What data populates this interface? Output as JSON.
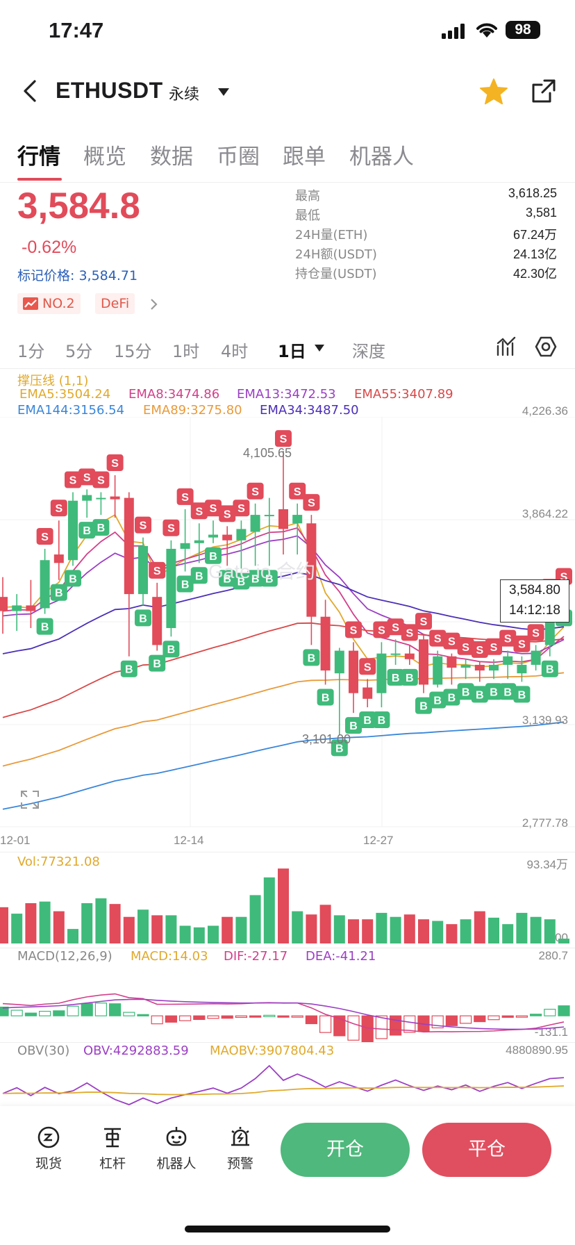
{
  "status_bar": {
    "time": "17:47",
    "battery": "98"
  },
  "header": {
    "pair": "ETHUSDT",
    "contract_type": "永续"
  },
  "tabs": [
    "行情",
    "概览",
    "数据",
    "币圈",
    "跟单",
    "机器人"
  ],
  "price": {
    "last": "3,584.8",
    "change": "-0.62%",
    "mark_label": "标记价格: 3,584.71",
    "tags": [
      "NO.2",
      "DeFi"
    ]
  },
  "stats": [
    {
      "label": "最高",
      "value": "3,618.25"
    },
    {
      "label": "最低",
      "value": "3,581"
    },
    {
      "label": "24H量(ETH)",
      "value": "67.24万"
    },
    {
      "label": "24H额(USDT)",
      "value": "24.13亿"
    },
    {
      "label": "持仓量(USDT)",
      "value": "42.30亿"
    }
  ],
  "timeframes": [
    "1分",
    "5分",
    "15分",
    "1时",
    "4时",
    "1日",
    "深度"
  ],
  "indicators": {
    "support_line": "撑压线 (1,1)",
    "ema_row1": [
      "EMA5:3504.24",
      "EMA8:3474.86",
      "EMA13:3472.53",
      "EMA55:3407.89"
    ],
    "ema_row2": [
      "EMA144:3156.54",
      "EMA89:3275.80",
      "EMA34:3487.50"
    ],
    "ema_colors": {
      "ema5": "#e0a92b",
      "ema8": "#d23f8a",
      "ema13": "#9b3fc4",
      "ema55": "#d94848",
      "ema144": "#3a86d9",
      "ema89": "#e89a3a",
      "ema34": "#4b2fb8"
    }
  },
  "chart_data": {
    "type": "candlestick",
    "y_ticks": [
      "4,226.36",
      "3,864.22",
      "3,139.93",
      "2,777.78"
    ],
    "x_ticks": [
      "12-01",
      "12-14",
      "12-27"
    ],
    "high_marker": "4,105.65",
    "low_marker": "3,101.00",
    "current_price_label": "3,584.80",
    "countdown": "14:12:18",
    "signal_buy": "B",
    "signal_sell": "S",
    "candles": [
      {
        "o": 3590,
        "c": 3540,
        "h": 3660,
        "l": 3460
      },
      {
        "o": 3540,
        "c": 3560,
        "h": 3600,
        "l": 3470
      },
      {
        "o": 3560,
        "c": 3540,
        "h": 3650,
        "l": 3480
      },
      {
        "o": 3550,
        "c": 3720,
        "h": 3760,
        "l": 3530
      },
      {
        "o": 3740,
        "c": 3710,
        "h": 3860,
        "l": 3650
      },
      {
        "o": 3720,
        "c": 3930,
        "h": 3960,
        "l": 3700
      },
      {
        "o": 3930,
        "c": 3950,
        "h": 3970,
        "l": 3870
      },
      {
        "o": 3940,
        "c": 3940,
        "h": 3960,
        "l": 3880
      },
      {
        "o": 3945,
        "c": 3935,
        "h": 4020,
        "l": 3870
      },
      {
        "o": 3940,
        "c": 3600,
        "h": 3960,
        "l": 3380
      },
      {
        "o": 3600,
        "c": 3770,
        "h": 3800,
        "l": 3560
      },
      {
        "o": 3590,
        "c": 3420,
        "h": 3640,
        "l": 3400
      },
      {
        "o": 3480,
        "c": 3760,
        "h": 3790,
        "l": 3450
      },
      {
        "o": 3760,
        "c": 3780,
        "h": 3900,
        "l": 3680
      },
      {
        "o": 3780,
        "c": 3790,
        "h": 3850,
        "l": 3710
      },
      {
        "o": 3800,
        "c": 3810,
        "h": 3860,
        "l": 3780
      },
      {
        "o": 3810,
        "c": 3790,
        "h": 3840,
        "l": 3700
      },
      {
        "o": 3790,
        "c": 3830,
        "h": 3860,
        "l": 3690
      },
      {
        "o": 3820,
        "c": 3880,
        "h": 3920,
        "l": 3700
      },
      {
        "o": 3880,
        "c": 3880,
        "h": 3940,
        "l": 3700
      },
      {
        "o": 3900,
        "c": 3830,
        "h": 4105.65,
        "l": 3740
      },
      {
        "o": 3850,
        "c": 3880,
        "h": 3920,
        "l": 3740
      },
      {
        "o": 3850,
        "c": 3520,
        "h": 3880,
        "l": 3420
      },
      {
        "o": 3520,
        "c": 3330,
        "h": 3580,
        "l": 3280
      },
      {
        "o": 3320,
        "c": 3400,
        "h": 3410,
        "l": 3101
      },
      {
        "o": 3400,
        "c": 3250,
        "h": 3430,
        "l": 3180
      },
      {
        "o": 3270,
        "c": 3230,
        "h": 3300,
        "l": 3200
      },
      {
        "o": 3250,
        "c": 3390,
        "h": 3430,
        "l": 3200
      },
      {
        "o": 3390,
        "c": 3390,
        "h": 3440,
        "l": 3350
      },
      {
        "o": 3390,
        "c": 3370,
        "h": 3420,
        "l": 3350
      },
      {
        "o": 3440,
        "c": 3280,
        "h": 3460,
        "l": 3250
      },
      {
        "o": 3280,
        "c": 3380,
        "h": 3400,
        "l": 3270
      },
      {
        "o": 3380,
        "c": 3340,
        "h": 3390,
        "l": 3280
      },
      {
        "o": 3340,
        "c": 3350,
        "h": 3370,
        "l": 3300
      },
      {
        "o": 3350,
        "c": 3330,
        "h": 3360,
        "l": 3290
      },
      {
        "o": 3330,
        "c": 3350,
        "h": 3370,
        "l": 3300
      },
      {
        "o": 3350,
        "c": 3380,
        "h": 3400,
        "l": 3300
      },
      {
        "o": 3320,
        "c": 3350,
        "h": 3380,
        "l": 3290
      },
      {
        "o": 3350,
        "c": 3400,
        "h": 3420,
        "l": 3330
      },
      {
        "o": 3420,
        "c": 3560,
        "h": 3580,
        "l": 3380
      },
      {
        "o": 3560,
        "c": 3584.8,
        "h": 3618.25,
        "l": 3560
      }
    ]
  },
  "volume": {
    "label": "Vol:77321.08",
    "max_label": "93.34万",
    "min_label": "0.00",
    "bars": [
      0.45,
      0.37,
      0.5,
      0.52,
      0.4,
      0.18,
      0.5,
      0.56,
      0.49,
      0.33,
      0.42,
      0.35,
      0.35,
      0.22,
      0.2,
      0.22,
      0.33,
      0.33,
      0.6,
      0.82,
      0.93,
      0.4,
      0.36,
      0.48,
      0.35,
      0.3,
      0.3,
      0.38,
      0.33,
      0.36,
      0.3,
      0.28,
      0.24,
      0.3,
      0.4,
      0.32,
      0.24,
      0.38,
      0.33,
      0.3,
      0.06
    ]
  },
  "macd": {
    "label": "MACD(12,26,9)",
    "macd": "MACD:14.03",
    "dif": "DIF:-27.17",
    "dea": "DEA:-41.21",
    "max_label": "280.7",
    "min_label": "-131.1"
  },
  "obv": {
    "label": "OBV(30)",
    "obv": "OBV:4292883.59",
    "maobv": "MAOBV:3907804.43",
    "max_label": "4880890.95"
  },
  "watermark": "Gate.io 合约",
  "bottom_nav": [
    "现货",
    "杠杆",
    "机器人",
    "预警"
  ],
  "actions": {
    "open": "开仓",
    "close": "平仓"
  },
  "colors": {
    "up": "#3fba7a",
    "down": "#e14b5a",
    "accent": "#e14b5a",
    "star": "#f4b322"
  }
}
